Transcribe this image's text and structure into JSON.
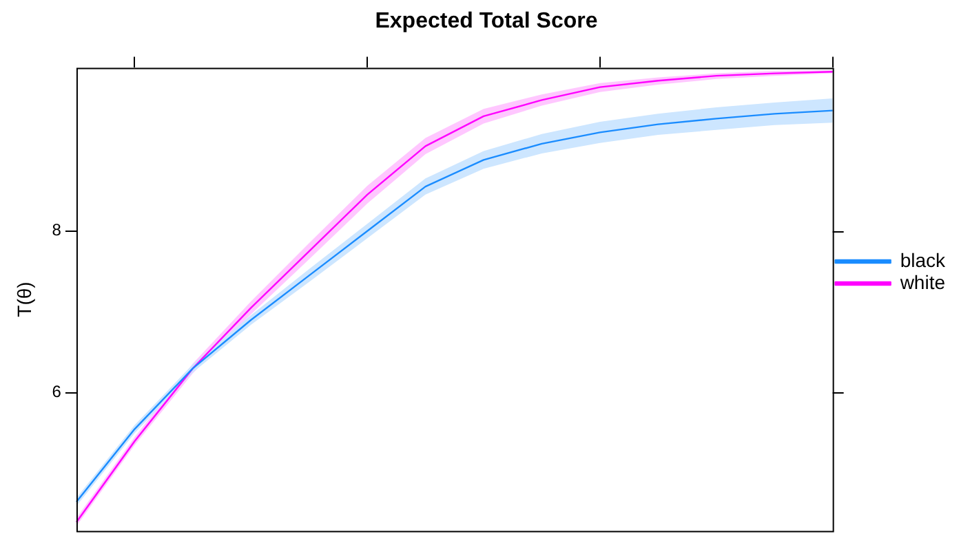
{
  "chart_data": {
    "type": "line",
    "title": "Expected Total Score",
    "ylabel": "T(θ)",
    "categories": [
      null,
      null,
      null,
      null,
      null,
      null,
      null,
      null,
      null,
      null,
      null,
      null,
      null,
      null
    ],
    "series": [
      {
        "name": "black",
        "color": "#1a8cff",
        "values": [
          4.65,
          5.55,
          6.3,
          6.9,
          7.45,
          8.0,
          8.55,
          8.88,
          9.08,
          9.22,
          9.32,
          9.39,
          9.45,
          9.49
        ],
        "lower": [
          4.6,
          5.5,
          6.25,
          6.84,
          7.37,
          7.91,
          8.45,
          8.77,
          8.96,
          9.09,
          9.19,
          9.25,
          9.31,
          9.34
        ],
        "upper": [
          4.7,
          5.6,
          6.35,
          6.96,
          7.53,
          8.09,
          8.65,
          8.99,
          9.2,
          9.35,
          9.45,
          9.53,
          9.59,
          9.64
        ]
      },
      {
        "name": "white",
        "color": "#ff00ff",
        "values": [
          4.4,
          5.4,
          6.3,
          7.05,
          7.75,
          8.45,
          9.05,
          9.42,
          9.62,
          9.78,
          9.86,
          9.92,
          9.95,
          9.97
        ],
        "lower": [
          4.35,
          5.35,
          6.24,
          6.97,
          7.65,
          8.34,
          8.95,
          9.33,
          9.55,
          9.72,
          9.81,
          9.88,
          9.92,
          9.95
        ],
        "upper": [
          4.45,
          5.45,
          6.36,
          7.13,
          7.85,
          8.56,
          9.15,
          9.51,
          9.69,
          9.83,
          9.9,
          9.95,
          9.98,
          9.99
        ]
      }
    ],
    "ylim": [
      4.29,
      10.02
    ],
    "yticks": [
      6,
      8
    ],
    "grid": false,
    "legend": "right",
    "marker": "none",
    "line_style": "solid"
  }
}
